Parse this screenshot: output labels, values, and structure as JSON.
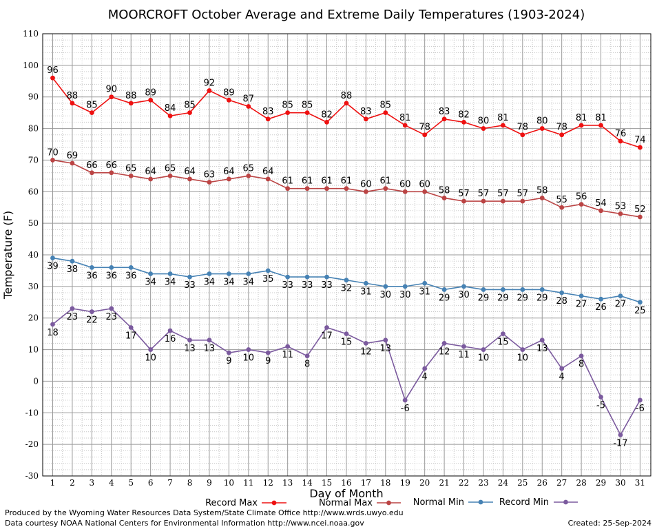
{
  "chart_data": {
    "type": "line",
    "title": "MOORCROFT October Average and Extreme Daily Temperatures (1903-2024)",
    "xlabel": "Day of Month",
    "ylabel": "Temperature (F)",
    "xlim": [
      1,
      31
    ],
    "ylim": [
      -30,
      110
    ],
    "yticks": [
      -30,
      -20,
      -10,
      0,
      10,
      20,
      30,
      40,
      50,
      60,
      70,
      80,
      90,
      100,
      110
    ],
    "x": [
      1,
      2,
      3,
      4,
      5,
      6,
      7,
      8,
      9,
      10,
      11,
      12,
      13,
      14,
      15,
      16,
      17,
      18,
      19,
      20,
      21,
      22,
      23,
      24,
      25,
      26,
      27,
      28,
      29,
      30,
      31
    ],
    "grid": true,
    "legend_position": "bottom",
    "series": [
      {
        "name": "Record Max",
        "color": "#ee1111",
        "label_pos": "above",
        "values": [
          96,
          88,
          85,
          90,
          88,
          89,
          84,
          85,
          92,
          89,
          87,
          83,
          85,
          85,
          82,
          88,
          83,
          85,
          81,
          78,
          83,
          82,
          80,
          81,
          78,
          80,
          78,
          81,
          81,
          76,
          74
        ]
      },
      {
        "name": "Normal Max",
        "color": "#bb4444",
        "label_pos": "above",
        "values": [
          70,
          69,
          66,
          66,
          65,
          64,
          65,
          64,
          63,
          64,
          65,
          64,
          61,
          61,
          61,
          61,
          60,
          61,
          60,
          60,
          58,
          57,
          57,
          57,
          57,
          58,
          55,
          56,
          54,
          53,
          52
        ]
      },
      {
        "name": "Normal Min",
        "color": "#4682b4",
        "label_pos": "below",
        "values": [
          39,
          38,
          36,
          36,
          36,
          34,
          34,
          33,
          34,
          34,
          34,
          35,
          33,
          33,
          33,
          32,
          31,
          30,
          30,
          31,
          29,
          30,
          29,
          29,
          29,
          29,
          28,
          27,
          26,
          27,
          25
        ]
      },
      {
        "name": "Record Min",
        "color": "#7b5a9e",
        "label_pos": "below",
        "values": [
          18,
          23,
          22,
          23,
          17,
          10,
          16,
          13,
          13,
          9,
          10,
          9,
          11,
          8,
          17,
          15,
          12,
          13,
          -6,
          4,
          12,
          11,
          10,
          15,
          10,
          13,
          4,
          8,
          -5,
          -17,
          -6
        ]
      }
    ]
  },
  "footer": {
    "produced_by": "Produced by the Wyoming Water Resources Data System/State Climate Office http://www.wrds.uwyo.edu",
    "data_courtesy": "Data courtesy NOAA National Centers for Environmental Information http://www.ncei.noaa.gov",
    "created": "Created:  25-Sep-2024"
  }
}
